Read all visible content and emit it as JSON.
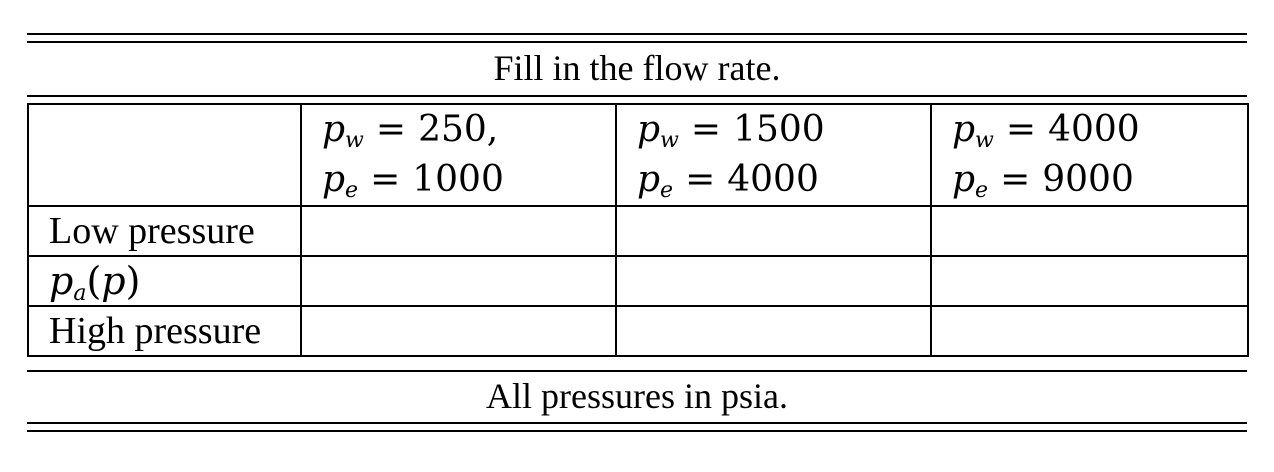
{
  "caption_top": "Fill in the flow rate.",
  "caption_bottom": "All pressures in psia.",
  "columns": [
    {
      "line1": {
        "var": "p",
        "sub": "w",
        "op": "=",
        "value": "250,"
      },
      "line2": {
        "var": "p",
        "sub": "e",
        "op": "=",
        "value": "1000"
      }
    },
    {
      "line1": {
        "var": "p",
        "sub": "w",
        "op": "=",
        "value": "1500"
      },
      "line2": {
        "var": "p",
        "sub": "e",
        "op": "=",
        "value": "4000"
      }
    },
    {
      "line1": {
        "var": "p",
        "sub": "w",
        "op": "=",
        "value": "4000"
      },
      "line2": {
        "var": "p",
        "sub": "e",
        "op": "=",
        "value": "9000"
      }
    }
  ],
  "rows": [
    {
      "label": "Low pressure"
    },
    {
      "label_math": {
        "var": "p",
        "sub": "a",
        "arg_open": "(",
        "arg": "p",
        "arg_close": ")"
      }
    },
    {
      "label": "High pressure"
    }
  ]
}
